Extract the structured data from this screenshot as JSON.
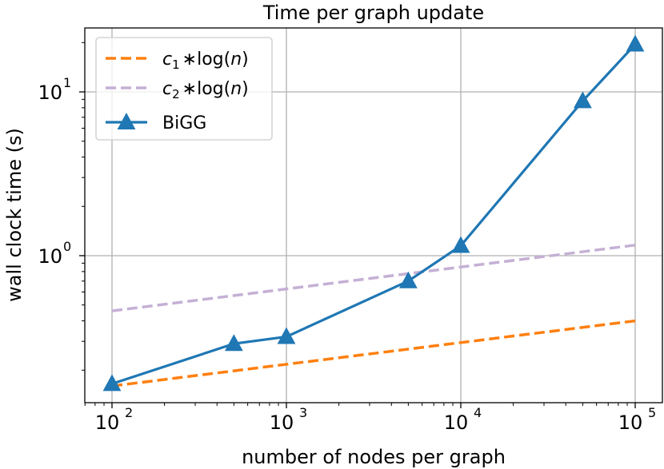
{
  "chart_data": {
    "type": "line",
    "title": "Time per graph update",
    "xlabel": "number of nodes per graph",
    "ylabel": "wall clock time (s)",
    "xscale": "log",
    "yscale": "log",
    "xlim": [
      70,
      150000
    ],
    "ylim": [
      0.125,
      22
    ],
    "grid": true,
    "legend_position": "upper-left",
    "x_ticks": [
      {
        "base": "10",
        "exp": "2",
        "value": 100
      },
      {
        "base": "10",
        "exp": "3",
        "value": 1000
      },
      {
        "base": "10",
        "exp": "4",
        "value": 10000
      },
      {
        "base": "10",
        "exp": "5",
        "value": 100000
      }
    ],
    "y_ticks": [
      {
        "base": "10",
        "exp": "0",
        "value": 1
      },
      {
        "base": "10",
        "exp": "1",
        "value": 10
      }
    ],
    "series": [
      {
        "name": "c1 * log(n)",
        "legend": {
          "var": "c",
          "sub": "1",
          "expr": "∗log(",
          "arg": "n",
          "close": ")"
        },
        "color": "#ff7f0e",
        "style": "dashed",
        "marker": "none",
        "x": [
          100,
          100000
        ],
        "y": [
          0.16,
          0.4
        ]
      },
      {
        "name": "c2 * log(n)",
        "legend": {
          "var": "c",
          "sub": "2",
          "expr": "∗log(",
          "arg": "n",
          "close": ")"
        },
        "color": "#c5b0d5",
        "style": "dashed",
        "marker": "none",
        "x": [
          100,
          100000
        ],
        "y": [
          0.46,
          1.16
        ]
      },
      {
        "name": "BiGG",
        "legend": {
          "text": "BiGG"
        },
        "color": "#1f77b4",
        "style": "solid",
        "marker": "triangle",
        "x": [
          100,
          500,
          1000,
          5000,
          10000,
          50000,
          100000
        ],
        "y": [
          0.165,
          0.29,
          0.32,
          0.7,
          1.15,
          8.8,
          19.5
        ]
      }
    ]
  }
}
